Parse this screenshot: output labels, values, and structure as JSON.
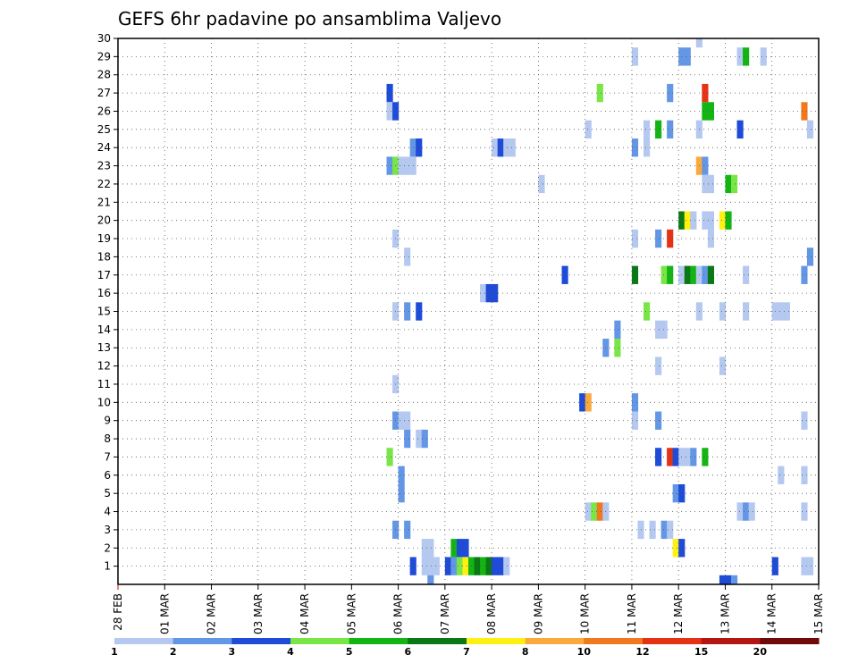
{
  "chart_data": {
    "type": "heatmap",
    "title": "GEFS 6hr padavine po ansamblima Valjevo",
    "xlabel": "",
    "ylabel": "",
    "x_start_label": "28 FEB",
    "x_ticks": [
      "28 FEB",
      "01 MAR",
      "02 MAR",
      "03 MAR",
      "04 MAR",
      "05 MAR",
      "06 MAR",
      "07 MAR",
      "08 MAR",
      "09 MAR",
      "10 MAR",
      "11 MAR",
      "12 MAR",
      "13 MAR",
      "14 MAR",
      "15 MAR"
    ],
    "x_range_days": [
      0,
      15
    ],
    "y_ticks": [
      1,
      2,
      3,
      4,
      5,
      6,
      7,
      8,
      9,
      10,
      11,
      12,
      13,
      14,
      15,
      16,
      17,
      18,
      19,
      20,
      21,
      22,
      23,
      24,
      25,
      26,
      27,
      28,
      29,
      30
    ],
    "y_range": [
      0,
      30
    ],
    "grid": true,
    "colorbar": {
      "thresholds": [
        "1",
        "2",
        "3",
        "4",
        "5",
        "6",
        "7",
        "8",
        "10",
        "12",
        "15",
        "20"
      ],
      "colors": [
        "#b4c8f0",
        "#6496e6",
        "#1e4bd7",
        "#78e646",
        "#14b414",
        "#0a7814",
        "#fff014",
        "#faaa3c",
        "#f0781e",
        "#e63214",
        "#b41414",
        "#6e0a0a"
      ]
    },
    "cells_format": "[member, day_offset_from_28_FEB, color_index]",
    "cells": [
      [
        30,
        12.375,
        0
      ],
      [
        29,
        11.0,
        0
      ],
      [
        29,
        12.0,
        1
      ],
      [
        29,
        12.125,
        1
      ],
      [
        29,
        13.25,
        0
      ],
      [
        29,
        13.375,
        4
      ],
      [
        29,
        13.75,
        0
      ],
      [
        27,
        5.75,
        2
      ],
      [
        27,
        10.25,
        3
      ],
      [
        27,
        11.75,
        1
      ],
      [
        27,
        12.5,
        9
      ],
      [
        26,
        5.75,
        0
      ],
      [
        26,
        5.875,
        2
      ],
      [
        26,
        12.5,
        4
      ],
      [
        26,
        12.625,
        4
      ],
      [
        26,
        14.625,
        8
      ],
      [
        25,
        10.0,
        0
      ],
      [
        25,
        11.25,
        0
      ],
      [
        25,
        11.5,
        4
      ],
      [
        25,
        11.75,
        1
      ],
      [
        25,
        12.375,
        0
      ],
      [
        25,
        13.25,
        2
      ],
      [
        25,
        14.75,
        0
      ],
      [
        24,
        6.25,
        1
      ],
      [
        24,
        6.375,
        2
      ],
      [
        24,
        8.0,
        0
      ],
      [
        24,
        8.125,
        2
      ],
      [
        24,
        8.25,
        0
      ],
      [
        24,
        8.375,
        0
      ],
      [
        24,
        11.0,
        1
      ],
      [
        24,
        11.25,
        0
      ],
      [
        23,
        5.75,
        1
      ],
      [
        23,
        5.875,
        3
      ],
      [
        23,
        6.0,
        0
      ],
      [
        23,
        6.125,
        0
      ],
      [
        23,
        6.25,
        0
      ],
      [
        23,
        12.375,
        7
      ],
      [
        23,
        12.5,
        1
      ],
      [
        22,
        9.0,
        0
      ],
      [
        22,
        12.5,
        0
      ],
      [
        22,
        12.625,
        0
      ],
      [
        22,
        13.0,
        4
      ],
      [
        22,
        13.125,
        3
      ],
      [
        20,
        12.0,
        5
      ],
      [
        20,
        12.125,
        6
      ],
      [
        20,
        12.25,
        0
      ],
      [
        20,
        12.5,
        0
      ],
      [
        20,
        12.625,
        0
      ],
      [
        20,
        12.875,
        6
      ],
      [
        20,
        13.0,
        4
      ],
      [
        19,
        5.875,
        0
      ],
      [
        19,
        11.0,
        0
      ],
      [
        19,
        11.5,
        1
      ],
      [
        19,
        11.75,
        9
      ],
      [
        19,
        12.625,
        0
      ],
      [
        18,
        6.125,
        0
      ],
      [
        18,
        14.75,
        1
      ],
      [
        17,
        9.5,
        2
      ],
      [
        17,
        11.0,
        5
      ],
      [
        17,
        11.625,
        3
      ],
      [
        17,
        11.75,
        4
      ],
      [
        17,
        12.0,
        0
      ],
      [
        17,
        12.125,
        5
      ],
      [
        17,
        12.25,
        4
      ],
      [
        17,
        12.375,
        0
      ],
      [
        17,
        12.5,
        1
      ],
      [
        17,
        12.625,
        5
      ],
      [
        17,
        13.375,
        0
      ],
      [
        17,
        14.625,
        1
      ],
      [
        16,
        7.75,
        0
      ],
      [
        16,
        7.875,
        2
      ],
      [
        16,
        8.0,
        2
      ],
      [
        15,
        5.875,
        0
      ],
      [
        15,
        6.125,
        1
      ],
      [
        15,
        6.375,
        2
      ],
      [
        15,
        11.25,
        3
      ],
      [
        15,
        12.375,
        0
      ],
      [
        15,
        12.875,
        0
      ],
      [
        15,
        13.375,
        0
      ],
      [
        15,
        14.0,
        0
      ],
      [
        15,
        14.125,
        0
      ],
      [
        15,
        14.25,
        0
      ],
      [
        14,
        10.625,
        1
      ],
      [
        14,
        11.5,
        0
      ],
      [
        14,
        11.625,
        0
      ],
      [
        13,
        10.375,
        1
      ],
      [
        13,
        10.625,
        3
      ],
      [
        12,
        11.5,
        0
      ],
      [
        12,
        12.875,
        0
      ],
      [
        11,
        5.875,
        0
      ],
      [
        10,
        9.875,
        2
      ],
      [
        10,
        10.0,
        7
      ],
      [
        10,
        11.0,
        1
      ],
      [
        9,
        5.875,
        1
      ],
      [
        9,
        6.0,
        0
      ],
      [
        9,
        6.125,
        0
      ],
      [
        9,
        11.0,
        0
      ],
      [
        9,
        11.5,
        1
      ],
      [
        9,
        14.625,
        0
      ],
      [
        8,
        6.125,
        1
      ],
      [
        8,
        6.375,
        0
      ],
      [
        8,
        6.5,
        1
      ],
      [
        7,
        5.75,
        3
      ],
      [
        7,
        11.5,
        2
      ],
      [
        7,
        11.75,
        9
      ],
      [
        7,
        11.875,
        2
      ],
      [
        7,
        12.0,
        0
      ],
      [
        7,
        12.125,
        0
      ],
      [
        7,
        12.25,
        1
      ],
      [
        7,
        12.5,
        4
      ],
      [
        6,
        6.0,
        1
      ],
      [
        6,
        14.125,
        0
      ],
      [
        6,
        14.625,
        0
      ],
      [
        5,
        6.0,
        1
      ],
      [
        5,
        11.875,
        1
      ],
      [
        5,
        12.0,
        2
      ],
      [
        4,
        10.0,
        0
      ],
      [
        4,
        10.125,
        3
      ],
      [
        4,
        10.25,
        8
      ],
      [
        4,
        10.375,
        0
      ],
      [
        4,
        13.25,
        0
      ],
      [
        4,
        13.375,
        1
      ],
      [
        4,
        13.5,
        0
      ],
      [
        4,
        14.625,
        0
      ],
      [
        3,
        5.875,
        1
      ],
      [
        3,
        6.125,
        1
      ],
      [
        3,
        11.125,
        0
      ],
      [
        3,
        11.375,
        0
      ],
      [
        3,
        11.625,
        1
      ],
      [
        3,
        11.75,
        0
      ],
      [
        2,
        6.5,
        0
      ],
      [
        2,
        6.625,
        0
      ],
      [
        2,
        7.125,
        4
      ],
      [
        2,
        7.25,
        2
      ],
      [
        2,
        7.375,
        2
      ],
      [
        2,
        11.875,
        6
      ],
      [
        2,
        12.0,
        2
      ],
      [
        1,
        6.25,
        2
      ],
      [
        1,
        6.5,
        0
      ],
      [
        1,
        6.625,
        0
      ],
      [
        1,
        6.75,
        0
      ],
      [
        1,
        7.0,
        2
      ],
      [
        1,
        7.125,
        1
      ],
      [
        1,
        7.25,
        3
      ],
      [
        1,
        7.375,
        6
      ],
      [
        1,
        7.5,
        4
      ],
      [
        1,
        7.625,
        5
      ],
      [
        1,
        7.75,
        4
      ],
      [
        1,
        7.875,
        5
      ],
      [
        1,
        8.0,
        2
      ],
      [
        1,
        8.125,
        2
      ],
      [
        1,
        8.25,
        0
      ],
      [
        1,
        14.0,
        2
      ],
      [
        1,
        14.625,
        0
      ],
      [
        1,
        14.75,
        0
      ],
      [
        0,
        6.625,
        1
      ],
      [
        0,
        12.875,
        2
      ],
      [
        0,
        13.0,
        2
      ],
      [
        0,
        13.125,
        1
      ]
    ]
  }
}
